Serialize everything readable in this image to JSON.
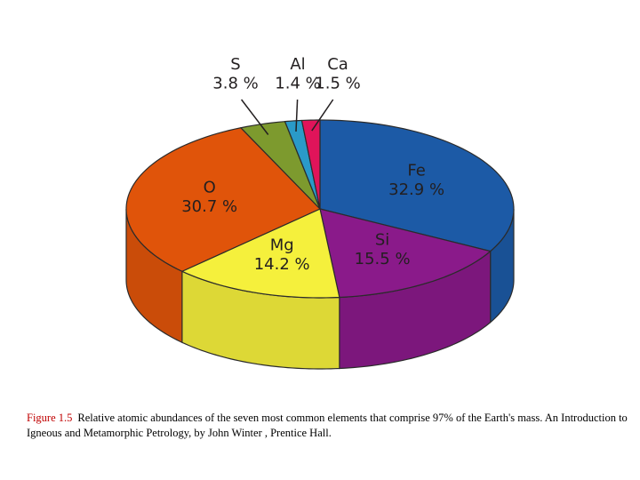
{
  "chart_data": {
    "type": "pie",
    "title": "",
    "categories": [
      "Fe",
      "Si",
      "Mg",
      "O",
      "S",
      "Al",
      "Ca"
    ],
    "values": [
      32.9,
      15.5,
      14.2,
      30.7,
      3.8,
      1.4,
      1.5
    ],
    "value_labels": [
      "32.9 %",
      "15.5 %",
      "14.2 %",
      "30.7 %",
      "3.8 %",
      "1.4 %",
      "1.5 %"
    ],
    "colors": [
      "#1c5aa6",
      "#8a1a8a",
      "#f5f03c",
      "#e0540a",
      "#7d9a2e",
      "#2a9ac8",
      "#e0145a"
    ],
    "style": "3d-cylinder",
    "legend": "none"
  },
  "caption": {
    "label": "Figure 1.5",
    "text": "Relative atomic abundances of the seven most common elements that comprise 97% of the Earth's mass. An Introduction to Igneous and Metamorphic Petrology, by John Winter , Prentice Hall."
  }
}
